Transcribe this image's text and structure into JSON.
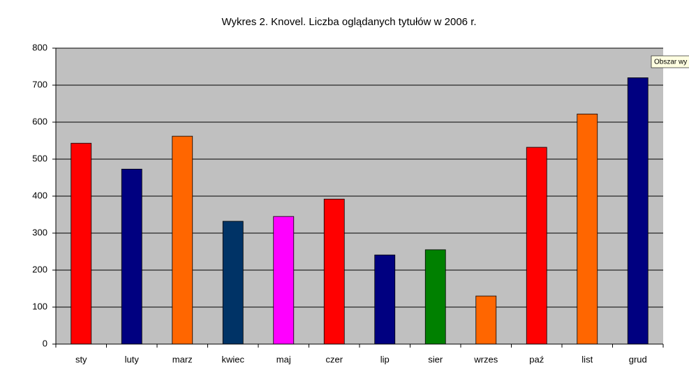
{
  "chart_data": {
    "type": "bar",
    "title": "Wykres 2. Knovel. Liczba oglądanych tytułów w 2006 r.",
    "categories": [
      "sty",
      "luty",
      "marz",
      "kwiec",
      "maj",
      "czer",
      "lip",
      "sier",
      "wrzes",
      "paź",
      "list",
      "grud"
    ],
    "values": [
      543,
      473,
      562,
      332,
      345,
      392,
      241,
      255,
      130,
      532,
      622,
      720
    ],
    "colors": [
      "#ff0000",
      "#000080",
      "#ff6600",
      "#003366",
      "#ff00ff",
      "#ff0000",
      "#000080",
      "#008000",
      "#ff6600",
      "#ff0000",
      "#ff6600",
      "#000080"
    ],
    "ylim": [
      0,
      800
    ],
    "yticks": [
      0,
      100,
      200,
      300,
      400,
      500,
      600,
      700,
      800
    ],
    "grid": true
  },
  "tooltip": "Obszar wy"
}
